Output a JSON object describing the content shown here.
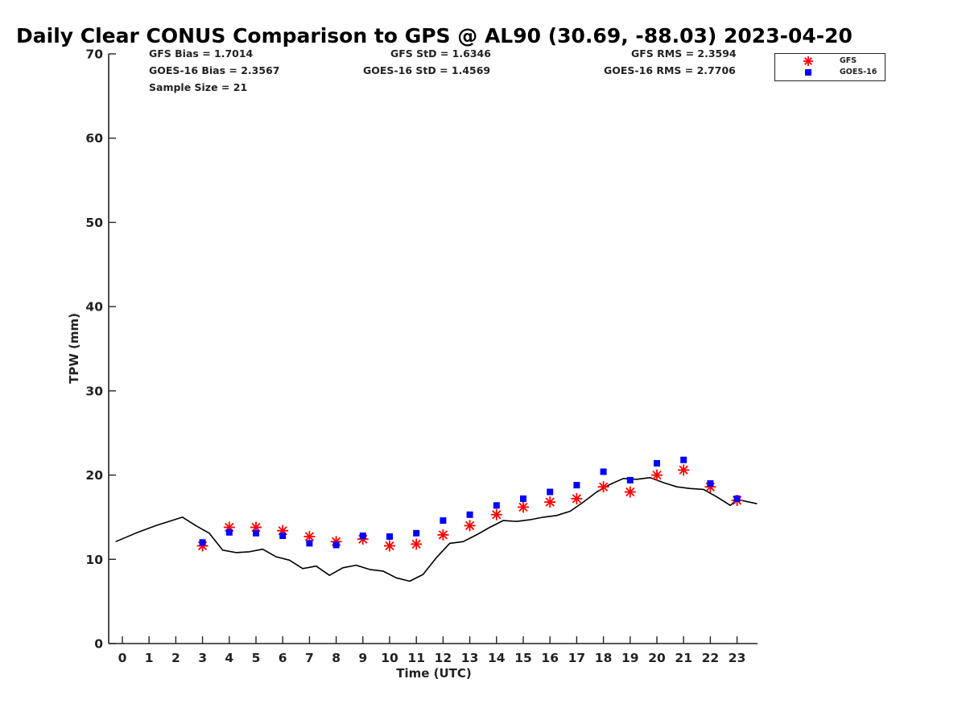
{
  "title": "Daily Clear CONUS Comparison to GPS @ AL90 (30.69, -88.03) 2023-04-20",
  "stats": {
    "gfs_bias": "GFS Bias = 1.7014",
    "goes_bias": "GOES-16 Bias = 2.3567",
    "sample_size": "Sample Size = 21",
    "gfs_std": "GFS StD = 1.6346",
    "goes_std": "GOES-16 StD = 1.4569",
    "gfs_rms": "GFS RMS = 2.3594",
    "goes_rms": "GOES-16 RMS = 2.7706"
  },
  "legend": {
    "gfs_label": "GFS",
    "goes_label": "GOES-16"
  },
  "colors": {
    "gfs": "#ff0000",
    "goes": "#0000ff",
    "gps_line": "#000000",
    "axis": "#222222"
  },
  "chart_data": {
    "type": "scatter",
    "title": "Daily Clear CONUS Comparison to GPS @ AL90 (30.69, -88.03) 2023-04-20",
    "xlabel": "Time (UTC)",
    "ylabel": "TPW (mm)",
    "xlim": [
      -0.5,
      23.8
    ],
    "ylim": [
      0,
      70
    ],
    "xticks": [
      0,
      1,
      2,
      3,
      4,
      5,
      6,
      7,
      8,
      9,
      10,
      11,
      12,
      13,
      14,
      15,
      16,
      17,
      18,
      19,
      20,
      21,
      22,
      23
    ],
    "yticks": [
      0,
      10,
      20,
      30,
      40,
      50,
      60,
      70
    ],
    "grid": false,
    "legend_position": "top-right",
    "series": [
      {
        "name": "GFS",
        "marker": "asterisk",
        "x": [
          3,
          4,
          5,
          6,
          7,
          8,
          9,
          10,
          11,
          12,
          13,
          14,
          15,
          16,
          17,
          18,
          19,
          20,
          21,
          22,
          23
        ],
        "values": [
          11.6,
          13.8,
          13.8,
          13.4,
          12.7,
          12.1,
          12.4,
          11.6,
          11.8,
          12.9,
          14.0,
          15.3,
          16.2,
          16.8,
          17.2,
          18.6,
          18.0,
          20.0,
          20.6,
          18.6,
          17.0
        ]
      },
      {
        "name": "GOES-16",
        "marker": "square",
        "x": [
          3,
          4,
          5,
          6,
          7,
          8,
          9,
          10,
          11,
          12,
          13,
          14,
          15,
          16,
          17,
          18,
          19,
          20,
          21,
          22,
          23
        ],
        "values": [
          12.0,
          13.2,
          13.1,
          12.8,
          11.9,
          11.7,
          12.8,
          12.7,
          13.1,
          14.6,
          15.3,
          16.4,
          17.2,
          18.0,
          18.8,
          20.4,
          19.4,
          21.4,
          21.8,
          19.0,
          17.2
        ]
      },
      {
        "marker": "line",
        "x": [
          -0.25,
          0.5,
          1.25,
          2.25,
          2.75,
          3.25,
          3.75,
          4.25,
          4.75,
          5.25,
          5.75,
          6.25,
          6.75,
          7.25,
          7.75,
          8.25,
          8.75,
          9.25,
          9.75,
          10.25,
          10.75,
          11.25,
          11.75,
          12.25,
          12.75,
          13.25,
          13.75,
          14.25,
          14.75,
          15.25,
          15.75,
          16.25,
          16.75,
          17.25,
          17.75,
          18.25,
          18.75,
          19.25,
          19.75,
          20.25,
          20.75,
          21.25,
          21.75,
          22.25,
          22.75,
          23.0,
          23.75
        ],
        "values": [
          12.1,
          13.1,
          14.0,
          15.0,
          14.0,
          13.1,
          11.1,
          10.8,
          10.9,
          11.2,
          10.3,
          9.9,
          8.9,
          9.2,
          8.1,
          9.0,
          9.3,
          8.8,
          8.6,
          7.8,
          7.4,
          8.2,
          10.2,
          11.9,
          12.1,
          12.9,
          13.8,
          14.6,
          14.5,
          14.7,
          15.0,
          15.2,
          15.7,
          16.8,
          18.0,
          18.9,
          19.6,
          19.5,
          19.7,
          19.1,
          18.6,
          18.4,
          18.3,
          17.4,
          16.4,
          17.1,
          16.6
        ]
      }
    ]
  }
}
